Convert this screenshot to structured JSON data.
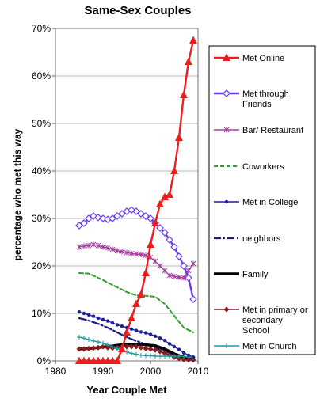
{
  "chart_data": {
    "type": "line",
    "title": "Same-Sex Couples",
    "xlabel": "Year Couple Met",
    "ylabel": "percentage who met this way",
    "xlim": [
      1980,
      2010
    ],
    "ylim": [
      0,
      0.7
    ],
    "x_ticks": [
      1980,
      1990,
      2000,
      2010
    ],
    "y_ticks": [
      0,
      0.1,
      0.2,
      0.3,
      0.4,
      0.5,
      0.6,
      0.7
    ],
    "y_tick_labels": [
      "0%",
      "10%",
      "20%",
      "30%",
      "40%",
      "50%",
      "60%",
      "70%"
    ],
    "grid": "horizontal",
    "legend_position": "right",
    "series": [
      {
        "name": "Met Online",
        "color": "#ee1c1c",
        "style": "solid-thick",
        "marker": "triangle",
        "x": [
          1985,
          1986,
          1987,
          1988,
          1989,
          1990,
          1991,
          1992,
          1993,
          1994,
          1995,
          1996,
          1997,
          1998,
          1999,
          2000,
          2001,
          2002,
          2003,
          2004,
          2005,
          2006,
          2007,
          2008,
          2009
        ],
        "y": [
          0.0,
          0.0,
          0.0,
          0.0,
          0.0,
          0.0,
          0.0,
          0.0,
          0.0,
          0.025,
          0.06,
          0.09,
          0.12,
          0.14,
          0.185,
          0.245,
          0.29,
          0.33,
          0.345,
          0.35,
          0.4,
          0.47,
          0.56,
          0.63,
          0.675
        ]
      },
      {
        "name": "Met through Friends",
        "color": "#6a3cf0",
        "style": "solid-thick",
        "marker": "diamond",
        "x": [
          1985,
          1986,
          1987,
          1988,
          1989,
          1990,
          1991,
          1992,
          1993,
          1994,
          1995,
          1996,
          1997,
          1998,
          1999,
          2000,
          2001,
          2002,
          2003,
          2004,
          2005,
          2006,
          2007,
          2008,
          2009
        ],
        "y": [
          0.285,
          0.29,
          0.3,
          0.305,
          0.302,
          0.3,
          0.298,
          0.3,
          0.305,
          0.31,
          0.315,
          0.318,
          0.315,
          0.31,
          0.305,
          0.3,
          0.29,
          0.28,
          0.27,
          0.255,
          0.24,
          0.22,
          0.2,
          0.175,
          0.13
        ]
      },
      {
        "name": "Bar/ Restaurant",
        "color": "#a53aa0",
        "style": "solid",
        "marker": "star",
        "x": [
          1985,
          1986,
          1987,
          1988,
          1989,
          1990,
          1991,
          1992,
          1993,
          1994,
          1995,
          1996,
          1997,
          1998,
          1999,
          2000,
          2001,
          2002,
          2003,
          2004,
          2005,
          2006,
          2007,
          2008,
          2009
        ],
        "y": [
          0.24,
          0.242,
          0.243,
          0.245,
          0.243,
          0.24,
          0.238,
          0.235,
          0.232,
          0.23,
          0.228,
          0.226,
          0.225,
          0.224,
          0.222,
          0.218,
          0.21,
          0.2,
          0.19,
          0.18,
          0.178,
          0.176,
          0.175,
          0.19,
          0.205
        ]
      },
      {
        "name": "Coworkers",
        "color": "#2ea02e",
        "style": "dashed",
        "marker": "none",
        "x": [
          1985,
          1987,
          1989,
          1991,
          1993,
          1995,
          1997,
          1999,
          2001,
          2003,
          2005,
          2007,
          2009
        ],
        "y": [
          0.185,
          0.184,
          0.175,
          0.165,
          0.155,
          0.145,
          0.138,
          0.137,
          0.135,
          0.12,
          0.095,
          0.07,
          0.06
        ]
      },
      {
        "name": "Met in College",
        "color": "#1f1f99",
        "style": "solid",
        "marker": "dot",
        "x": [
          1985,
          1986,
          1987,
          1988,
          1989,
          1990,
          1991,
          1992,
          1993,
          1994,
          1995,
          1996,
          1997,
          1998,
          1999,
          2000,
          2001,
          2002,
          2003,
          2004,
          2005,
          2006,
          2007,
          2008,
          2009
        ],
        "y": [
          0.103,
          0.1,
          0.097,
          0.094,
          0.09,
          0.087,
          0.084,
          0.08,
          0.076,
          0.073,
          0.07,
          0.067,
          0.064,
          0.061,
          0.059,
          0.056,
          0.052,
          0.048,
          0.043,
          0.036,
          0.03,
          0.024,
          0.017,
          0.012,
          0.008
        ]
      },
      {
        "name": "neighbors",
        "color": "#1a1a8a",
        "style": "dashdot",
        "marker": "none",
        "x": [
          1985,
          1987,
          1989,
          1991,
          1993,
          1995,
          1997,
          1999,
          2001,
          2003,
          2005,
          2007,
          2009
        ],
        "y": [
          0.09,
          0.085,
          0.078,
          0.07,
          0.06,
          0.05,
          0.042,
          0.035,
          0.028,
          0.02,
          0.013,
          0.006,
          0.003
        ]
      },
      {
        "name": "Family",
        "color": "#000000",
        "style": "solid-heavy",
        "marker": "none",
        "x": [
          1985,
          1987,
          1989,
          1991,
          1993,
          1995,
          1997,
          1999,
          2001,
          2003,
          2005,
          2007,
          2009
        ],
        "y": [
          0.025,
          0.026,
          0.028,
          0.03,
          0.033,
          0.035,
          0.035,
          0.034,
          0.032,
          0.025,
          0.015,
          0.008,
          0.004
        ]
      },
      {
        "name": "Met in primary or secondary School",
        "color": "#8a1a1a",
        "style": "solid",
        "marker": "small-diamond",
        "x": [
          1985,
          1986,
          1987,
          1988,
          1989,
          1990,
          1991,
          1992,
          1993,
          1994,
          1995,
          1996,
          1997,
          1998,
          1999,
          2000,
          2001,
          2002,
          2003,
          2004,
          2005,
          2006,
          2007,
          2008,
          2009
        ],
        "y": [
          0.025,
          0.025,
          0.026,
          0.027,
          0.028,
          0.03,
          0.028,
          0.027,
          0.028,
          0.03,
          0.03,
          0.03,
          0.03,
          0.028,
          0.026,
          0.025,
          0.023,
          0.02,
          0.016,
          0.012,
          0.008,
          0.005,
          0.003,
          0.002,
          0.002
        ]
      },
      {
        "name": "Met in Church",
        "color": "#1a9aa5",
        "style": "solid",
        "marker": "plus",
        "x": [
          1985,
          1986,
          1987,
          1988,
          1989,
          1990,
          1991,
          1992,
          1993,
          1994,
          1995,
          1996,
          1997,
          1998,
          1999,
          2000,
          2001,
          2002,
          2003,
          2004,
          2005,
          2006,
          2007,
          2008,
          2009
        ],
        "y": [
          0.05,
          0.048,
          0.045,
          0.042,
          0.04,
          0.037,
          0.034,
          0.03,
          0.026,
          0.022,
          0.019,
          0.016,
          0.014,
          0.012,
          0.011,
          0.011,
          0.01,
          0.01,
          0.01,
          0.01,
          0.01,
          0.01,
          0.009,
          0.008,
          0.007
        ]
      }
    ]
  }
}
